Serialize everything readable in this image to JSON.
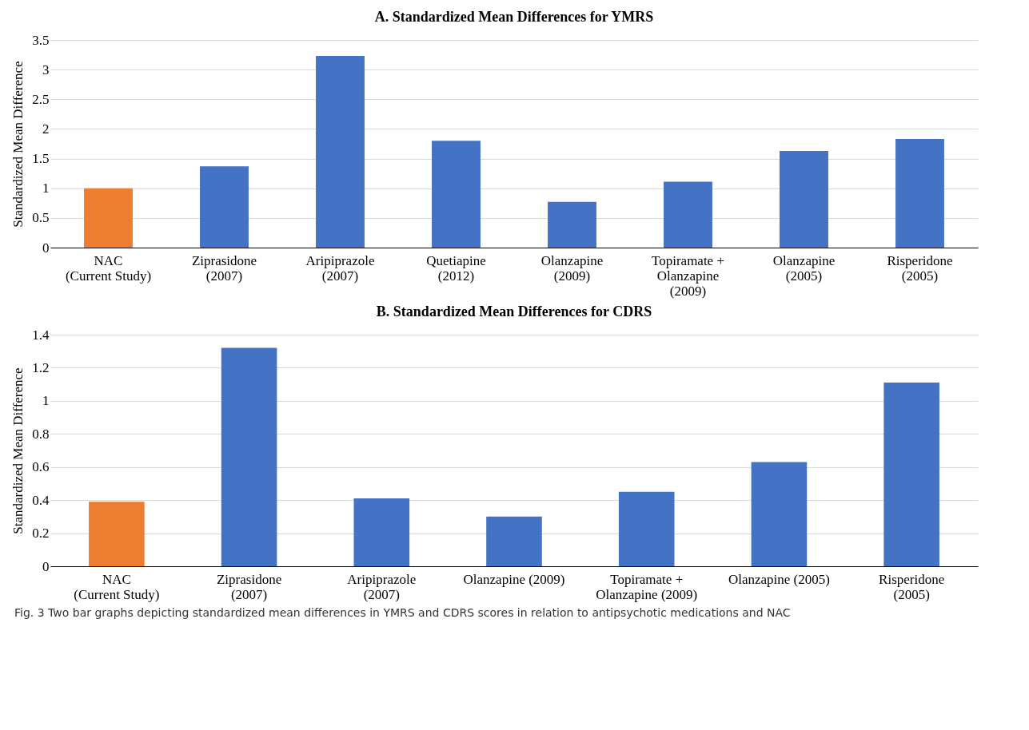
{
  "chart_data": [
    {
      "type": "bar",
      "title": "A. Standardized Mean Differences for YMRS",
      "ylabel": "Standardized Mean Difference",
      "categories": [
        "NAC\n(Current Study)",
        "Ziprasidone\n(2007)",
        "Aripiprazole\n(2007)",
        "Quetiapine\n(2012)",
        "Olanzapine\n(2009)",
        "Topiramate +\nOlanzapine\n(2009)",
        "Olanzapine\n(2005)",
        "Risperidone\n(2005)"
      ],
      "values": [
        1.0,
        1.37,
        3.23,
        1.8,
        0.77,
        1.11,
        1.63,
        1.83
      ],
      "colors": [
        "#ed7d31",
        "#4472c4",
        "#4472c4",
        "#4472c4",
        "#4472c4",
        "#4472c4",
        "#4472c4",
        "#4472c4"
      ],
      "ylim": [
        0,
        3.5
      ],
      "yticks": [
        0,
        0.5,
        1,
        1.5,
        2,
        2.5,
        3,
        3.5
      ],
      "grid": "y"
    },
    {
      "type": "bar",
      "title": "B. Standardized Mean Differences for CDRS",
      "ylabel": "Standardized Mean Difference",
      "categories": [
        "NAC\n(Current Study)",
        "Ziprasidone\n(2007)",
        "Aripiprazole\n(2007)",
        "Olanzapine (2009)",
        "Topiramate +\nOlanzapine (2009)",
        "Olanzapine (2005)",
        "Risperidone\n(2005)"
      ],
      "values": [
        0.39,
        1.32,
        0.41,
        0.3,
        0.45,
        0.63,
        1.11
      ],
      "colors": [
        "#ed7d31",
        "#4472c4",
        "#4472c4",
        "#4472c4",
        "#4472c4",
        "#4472c4",
        "#4472c4"
      ],
      "ylim": [
        0,
        1.4
      ],
      "yticks": [
        0,
        0.2,
        0.4,
        0.6,
        0.8,
        1,
        1.2,
        1.4
      ],
      "grid": "y",
      "annotations": [
        "Fig. 3 Two bar graphs depicting standardized mean differences in YMRS and CDRS scores in relation to antipsychotic medications and NAC"
      ]
    }
  ]
}
